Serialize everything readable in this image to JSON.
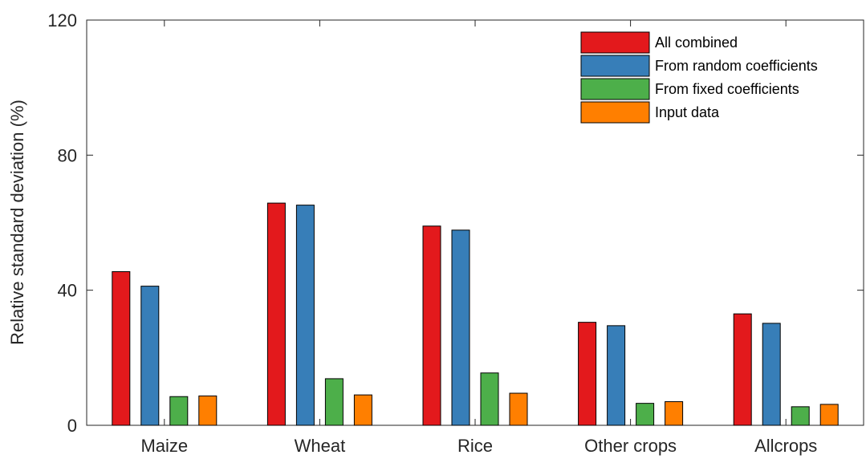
{
  "chart_data": {
    "type": "bar",
    "title": "",
    "xlabel": "",
    "ylabel": "Relative standard deviation (%)",
    "ylim": [
      0,
      120
    ],
    "yticks": [
      0,
      40,
      80,
      120
    ],
    "grid": false,
    "legend_position": "top-right",
    "categories": [
      "Maize",
      "Wheat",
      "Rice",
      "Other crops",
      "Allcrops"
    ],
    "series": [
      {
        "name": "All combined",
        "color": "#e3191c",
        "values": [
          45.5,
          65.8,
          59.0,
          30.5,
          33.0
        ]
      },
      {
        "name": "From random coefficients",
        "color": "#377eb8",
        "values": [
          41.2,
          65.2,
          57.8,
          29.5,
          30.2
        ]
      },
      {
        "name": "From fixed coefficients",
        "color": "#4daf4a",
        "values": [
          8.5,
          13.8,
          15.5,
          6.5,
          5.5
        ]
      },
      {
        "name": "Input data",
        "color": "#ff7f00",
        "values": [
          8.7,
          9.0,
          9.5,
          7.0,
          6.2
        ]
      }
    ]
  }
}
